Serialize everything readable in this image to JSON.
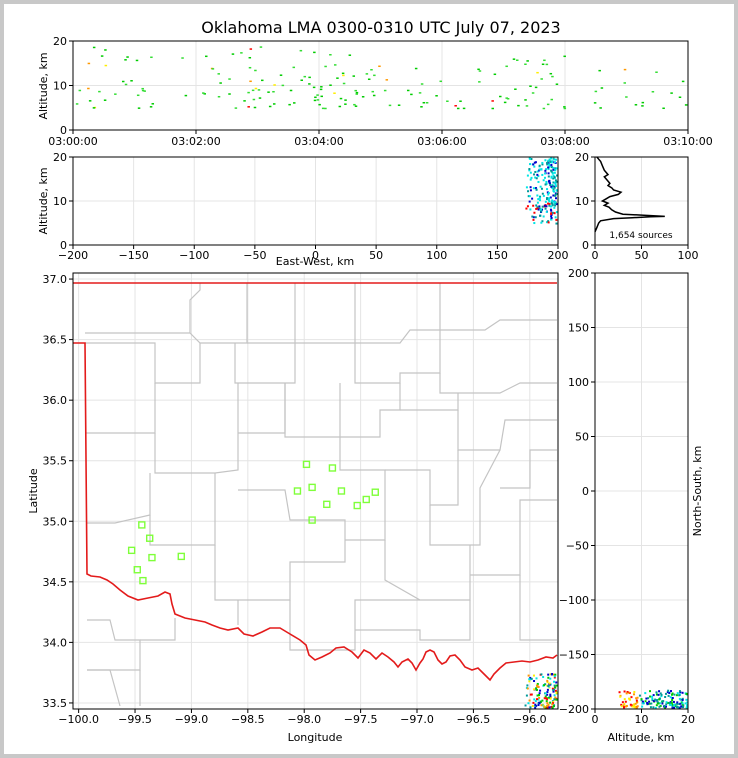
{
  "figure": {
    "title": "Oklahoma LMA 0300-0310 UTC July 07, 2023"
  },
  "chart_data": [
    {
      "id": "time-height",
      "type": "scatter",
      "title": "",
      "xlabel": "",
      "ylabel": "Altitude, km",
      "xlim": [
        "03:00:00",
        "03:10:00"
      ],
      "ylim": [
        0,
        20
      ],
      "x_ticks": [
        "03:00:00",
        "03:02:00",
        "03:04:00",
        "03:06:00",
        "03:08:00",
        "03:10:00"
      ],
      "y_ticks": [
        "0",
        "10",
        "20"
      ],
      "grid": true,
      "point_groups": [
        {
          "t_min": 0.0,
          "t_max": 1.9,
          "alt_min": 5,
          "alt_max": 19,
          "n": 30
        },
        {
          "t_min": 2.0,
          "t_max": 3.9,
          "alt_min": 5,
          "alt_max": 19,
          "n": 45
        },
        {
          "t_min": 3.9,
          "t_max": 5.0,
          "alt_min": 5,
          "alt_max": 18,
          "n": 40
        },
        {
          "t_min": 5.0,
          "t_max": 6.9,
          "alt_min": 5,
          "alt_max": 14,
          "n": 25
        },
        {
          "t_min": 6.9,
          "t_max": 8.0,
          "alt_min": 5,
          "alt_max": 17,
          "n": 30
        },
        {
          "t_min": 8.0,
          "t_max": 10.0,
          "alt_min": 5,
          "alt_max": 14,
          "n": 18
        }
      ]
    },
    {
      "id": "ew-altitude",
      "type": "scatter",
      "xlabel": "East-West, km",
      "ylabel": "Altitude, km",
      "xlim": [
        -200,
        200
      ],
      "ylim": [
        0,
        20
      ],
      "x_ticks": [
        "−200",
        "−150",
        "−100",
        "−50",
        "0",
        "50",
        "100",
        "150",
        "200"
      ],
      "y_ticks": [
        "0",
        "10",
        "20"
      ],
      "grid": true,
      "cluster": {
        "x_min": 172,
        "x_max": 200,
        "alt_min": 5,
        "alt_max": 20
      }
    },
    {
      "id": "altitude-histogram",
      "type": "line",
      "xlim": [
        0,
        100
      ],
      "ylim": [
        0,
        20
      ],
      "x_ticks": [
        "0",
        "50",
        "100"
      ],
      "y_ticks": [
        "0",
        "10",
        "20"
      ],
      "annotation": "1,654 sources",
      "profile": [
        [
          0,
          3
        ],
        [
          2,
          4
        ],
        [
          4,
          5
        ],
        [
          6,
          5.5
        ],
        [
          20,
          6
        ],
        [
          40,
          6.2
        ],
        [
          60,
          6.4
        ],
        [
          75,
          6.5
        ],
        [
          50,
          6.8
        ],
        [
          30,
          7
        ],
        [
          22,
          7.5
        ],
        [
          18,
          8
        ],
        [
          15,
          8.6
        ],
        [
          10,
          9
        ],
        [
          14,
          9.5
        ],
        [
          8,
          10
        ],
        [
          12,
          10.5
        ],
        [
          16,
          11
        ],
        [
          25,
          11.5
        ],
        [
          28,
          12
        ],
        [
          20,
          12.5
        ],
        [
          18,
          13
        ],
        [
          14,
          13.5
        ],
        [
          16,
          14
        ],
        [
          12,
          15
        ],
        [
          10,
          15.5
        ],
        [
          14,
          16
        ],
        [
          10,
          17
        ],
        [
          8,
          18
        ],
        [
          6,
          19
        ],
        [
          4,
          19.5
        ],
        [
          2,
          20
        ]
      ]
    },
    {
      "id": "plan-view",
      "type": "scatter",
      "xlabel": "Longitude",
      "ylabel": "Latitude",
      "xlim": [
        -100.05,
        -95.75
      ],
      "ylim": [
        33.45,
        37.05
      ],
      "x_ticks": [
        "−100.0",
        "−99.5",
        "−99.0",
        "−98.5",
        "−98.0",
        "−97.5",
        "−97.0",
        "−96.5",
        "−96.0"
      ],
      "y_ticks": [
        "33.5",
        "34.0",
        "34.5",
        "35.0",
        "35.5",
        "36.0",
        "36.5",
        "37.0"
      ],
      "stations": [
        [
          -97.98,
          35.47
        ],
        [
          -97.75,
          35.44
        ],
        [
          -98.06,
          35.25
        ],
        [
          -97.93,
          35.28
        ],
        [
          -97.67,
          35.25
        ],
        [
          -97.37,
          35.24
        ],
        [
          -97.93,
          35.01
        ],
        [
          -97.8,
          35.14
        ],
        [
          -97.53,
          35.13
        ],
        [
          -97.45,
          35.18
        ],
        [
          -99.44,
          34.97
        ],
        [
          -99.37,
          34.86
        ],
        [
          -99.53,
          34.76
        ],
        [
          -99.35,
          34.7
        ],
        [
          -99.09,
          34.71
        ],
        [
          -99.48,
          34.6
        ],
        [
          -99.43,
          34.51
        ]
      ],
      "cluster": {
        "lon_min": -96.05,
        "lon_max": -95.75,
        "lat_min": 33.45,
        "lat_max": 33.75
      }
    },
    {
      "id": "altitude-ns",
      "type": "scatter",
      "xlabel": "Altitude, km",
      "ylabel": "North-South, km",
      "xlim": [
        0,
        20
      ],
      "ylim": [
        -200,
        200
      ],
      "x_ticks": [
        "0",
        "10",
        "20"
      ],
      "y_ticks": [
        "−200",
        "−150",
        "−100",
        "−50",
        "0",
        "50",
        "100",
        "150",
        "200"
      ],
      "cluster": {
        "alt_min": 5,
        "alt_max": 20,
        "ns_min": -200,
        "ns_max": -182
      }
    }
  ],
  "colors": {
    "border": "#e31b1b",
    "county": "#c4c4c4",
    "station": "#7fff3a",
    "sources": [
      "#00cc00",
      "#33dd33",
      "#ff9900",
      "#ff0000",
      "#0000cc",
      "#00e5e5",
      "#ffee00",
      "#009999"
    ]
  }
}
